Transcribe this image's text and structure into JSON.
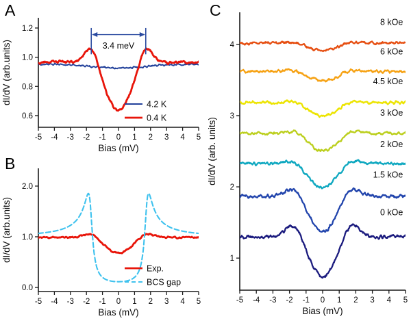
{
  "figure": {
    "panel_labels": {
      "a": "A",
      "b": "B",
      "c": "C"
    }
  },
  "chart_data": [
    {
      "type": "line",
      "panel": "A",
      "title": "",
      "xlabel": "Bias  (mV)",
      "ylabel": "dI/dV  (arb.units)",
      "xlim": [
        -5,
        5
      ],
      "ylim": [
        0.52,
        1.27
      ],
      "xticks": [
        -5,
        -4,
        -3,
        -2,
        -1,
        0,
        1,
        2,
        3,
        4,
        5
      ],
      "yticks": [
        0.6,
        0.8,
        1.0,
        1.2
      ],
      "ytick_labels": [
        "0.6",
        "0.8",
        "1.0",
        "1.2"
      ],
      "grid": false,
      "legend": true,
      "annotation": {
        "label": "3.4 meV",
        "gap_mev": 3.4,
        "x1": -1.7,
        "x2": 1.7,
        "arrow_y": 1.155,
        "bar_top": 1.2,
        "bar_bottom": 1.02,
        "text_y": 1.06,
        "color": "#2a4aa0"
      },
      "series": [
        {
          "name": "4.2 K",
          "color": "#21409a",
          "lw": 1.9,
          "baseline": 0.95,
          "depth": 0.025,
          "width": 1.4,
          "peak": 0,
          "gap": 1.7,
          "pw": 0.4,
          "noise": 0.006,
          "zero_bias_value": 0.93
        },
        {
          "name": "0.4 K",
          "color": "#e8150a",
          "lw": 2.8,
          "baseline": 0.965,
          "depth": 0.33,
          "width": 0.78,
          "peak": 0.12,
          "gap": 1.7,
          "pw": 0.4,
          "noise": 0.008,
          "zero_bias_value": 0.65,
          "coherence_peak_value": 1.05,
          "coherence_peak_bias": 1.7
        }
      ]
    },
    {
      "type": "line",
      "panel": "B",
      "title": "",
      "xlabel": "Bias  (mV)",
      "ylabel": "dI/dV  (arb.units)",
      "xlim": [
        -5,
        5
      ],
      "ylim": [
        -0.08,
        2.35
      ],
      "xticks": [
        -5,
        -4,
        -3,
        -2,
        -1,
        0,
        1,
        2,
        3,
        4,
        5
      ],
      "yticks": [
        0.0,
        1.0,
        2.0
      ],
      "ytick_labels": [
        "0.0",
        "1.0",
        "2.0"
      ],
      "grid": false,
      "legend": true,
      "series": [
        {
          "name": "Exp.",
          "color": "#e8150a",
          "lw": 2.8,
          "baseline": 0.99,
          "depth": 0.31,
          "width": 0.8,
          "peak": 0.09,
          "gap": 1.7,
          "pw": 0.42,
          "noise": 0.014,
          "zero_bias_value": 0.68
        },
        {
          "name": "BCS gap",
          "color": "#3fc2ee",
          "lw": 2.1,
          "dash": true,
          "model": "bcs",
          "delta": 1.75,
          "gamma": 0.2,
          "scale": 1.0,
          "noise": 0,
          "peak_value": 2.1,
          "peak_bias": 1.75
        }
      ]
    },
    {
      "type": "line",
      "panel": "C",
      "title": "",
      "xlabel": "Bias  (mV)",
      "ylabel": "dI/dV  (arb. units)",
      "xlim": [
        -5,
        5
      ],
      "ylim": [
        0.55,
        4.45
      ],
      "xticks": [
        -5,
        -4,
        -3,
        -2,
        -1,
        0,
        1,
        2,
        3,
        4,
        5
      ],
      "yticks": [
        1,
        2,
        3,
        4
      ],
      "ytick_labels": [
        "1",
        "2",
        "3",
        "4"
      ],
      "grid": false,
      "legend": false,
      "series": [
        {
          "name": "8 kOe",
          "color": "#e64f12",
          "lw": 2.3,
          "baseline": 4.02,
          "depth": 0.1,
          "width": 0.9,
          "peak": 0.02,
          "gap": 1.7,
          "pw": 0.5,
          "noise": 0.02,
          "label_y": 4.27
        },
        {
          "name": "6 kOe",
          "color": "#f6a214",
          "lw": 2.3,
          "baseline": 3.62,
          "depth": 0.13,
          "width": 0.9,
          "peak": 0.03,
          "gap": 1.7,
          "pw": 0.5,
          "noise": 0.02,
          "label_y": 3.86
        },
        {
          "name": "4.5 kOe",
          "color": "#ece400",
          "lw": 2.3,
          "baseline": 3.18,
          "depth": 0.18,
          "width": 0.9,
          "peak": 0.04,
          "gap": 1.7,
          "pw": 0.5,
          "noise": 0.02,
          "label_y": 3.44
        },
        {
          "name": "3 kOe",
          "color": "#bccf1e",
          "lw": 2.3,
          "baseline": 2.75,
          "depth": 0.24,
          "width": 0.85,
          "peak": 0.05,
          "gap": 1.7,
          "pw": 0.5,
          "noise": 0.02,
          "label_y": 3.0
        },
        {
          "name": "2 kOe",
          "color": "#0fa8c0",
          "lw": 2.3,
          "baseline": 2.33,
          "depth": 0.34,
          "width": 0.85,
          "peak": 0.06,
          "gap": 1.7,
          "pw": 0.5,
          "noise": 0.02,
          "label_y": 2.56
        },
        {
          "name": "1.5 kOe",
          "color": "#2144ac",
          "lw": 2.3,
          "baseline": 1.87,
          "depth": 0.5,
          "width": 0.82,
          "peak": 0.15,
          "gap": 1.7,
          "pw": 0.5,
          "noise": 0.024,
          "label_y": 2.13
        },
        {
          "name": "0 kOe",
          "color": "#1b1b7e",
          "lw": 2.3,
          "baseline": 1.3,
          "depth": 0.56,
          "width": 0.8,
          "peak": 0.2,
          "gap": 1.7,
          "pw": 0.5,
          "noise": 0.024,
          "label_y": 1.6
        }
      ]
    }
  ]
}
